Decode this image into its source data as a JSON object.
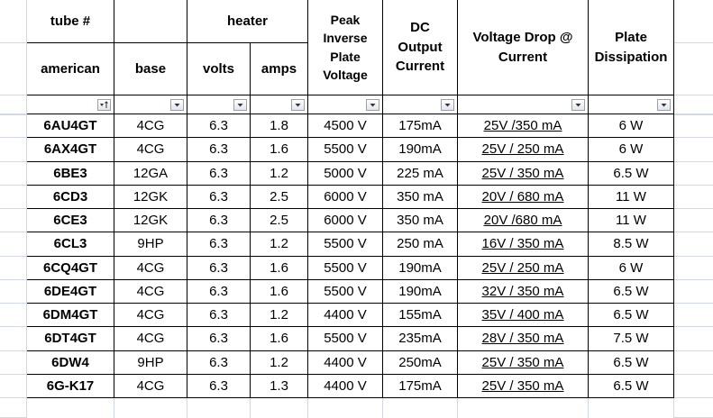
{
  "header": {
    "row1": {
      "tube": "tube #",
      "heater": "heater",
      "piv": "Peak Inverse Plate Voltage",
      "dc": "DC Output Current",
      "vdrop": "Voltage Drop @ Current",
      "plate": "Plate Dissipation"
    },
    "row2": [
      "american",
      "base",
      "volts",
      "amps"
    ]
  },
  "table": {
    "rows": [
      [
        "6AU4GT",
        "4CG",
        "6.3",
        "1.8",
        "4500 V",
        "175mA",
        "25V /350 mA",
        "6 W"
      ],
      [
        "6AX4GT",
        "4CG",
        "6.3",
        "1.6",
        "5500 V",
        "190mA",
        "25V / 250 mA",
        "6 W"
      ],
      [
        "6BE3",
        "12GA",
        "6.3",
        "1.2",
        "5000 V",
        "225 mA",
        "25V / 350 mA",
        "6.5 W"
      ],
      [
        "6CD3",
        "12GK",
        "6.3",
        "2.5",
        "6000 V",
        "350 mA",
        "20V / 680 mA",
        "11 W"
      ],
      [
        "6CE3",
        "12GK",
        "6.3",
        "2.5",
        "6000 V",
        "350 mA",
        "20V /680 mA",
        "11 W"
      ],
      [
        "6CL3",
        "9HP",
        "6.3",
        "1.2",
        "5500 V",
        "250 mA",
        "16V / 350 mA",
        "8.5 W"
      ],
      [
        "6CQ4GT",
        "4CG",
        "6.3",
        "1.6",
        "5500 V",
        "190mA",
        "25V / 250 mA",
        "6 W"
      ],
      [
        "6DE4GT",
        "4CG",
        "6.3",
        "1.6",
        "5500 V",
        "190mA",
        "32V / 350 mA",
        "6.5 W"
      ],
      [
        "6DM4GT",
        "4CG",
        "6.3",
        "1.2",
        "4400 V",
        "155mA",
        "35V / 400 mA",
        "6.5 W"
      ],
      [
        "6DT4GT",
        "4CG",
        "6.3",
        "1.6",
        "5500 V",
        "235mA",
        "28V / 350 mA",
        "7.5 W"
      ],
      [
        "6DW4",
        "9HP",
        "6.3",
        "1.2",
        "4400 V",
        "250mA",
        "25V / 350 mA",
        "6.5 W"
      ],
      [
        "6G-K17",
        "4CG",
        "6.3",
        "1.3",
        "4400 V",
        "175mA",
        "25V / 350 mA",
        "6.5 W"
      ]
    ]
  }
}
